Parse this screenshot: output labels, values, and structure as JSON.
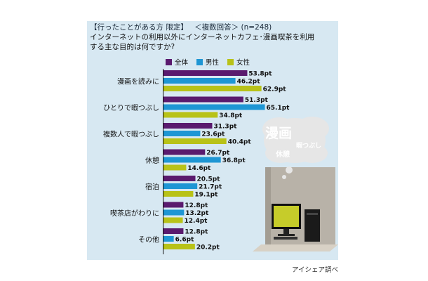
{
  "header": {
    "condition": "【行ったことがある方 限定】",
    "answer_type": "＜複数回答＞",
    "sample": "(n=248)",
    "question_line1": "インターネットの利用以外にインターネットカフェ･漫画喫茶を利用",
    "question_line2": "する主な目的は何ですか?"
  },
  "colors": {
    "all": "#5a1a6e",
    "male": "#1e96d4",
    "female": "#b8c218",
    "panel": "#d7e8f2"
  },
  "bubble": {
    "word1": "漫画",
    "word2": "暇つぶし",
    "word3": "休憩"
  },
  "credit": "アイシェア調べ",
  "chart_data": {
    "type": "bar",
    "orientation": "horizontal",
    "categories": [
      "漫画を読みに",
      "ひとりで暇つぶし",
      "複数人で暇つぶし",
      "休憩",
      "宿泊",
      "喫茶店がわりに",
      "その他"
    ],
    "series": [
      {
        "name": "全体",
        "color": "#5a1a6e",
        "values": [
          53.8,
          51.3,
          31.3,
          26.7,
          20.5,
          12.8,
          12.8
        ],
        "labels": [
          "53.8pt",
          "51.3pt",
          "31.3pt",
          "26.7pt",
          "20.5pt",
          "12.8pt",
          "12.8pt"
        ]
      },
      {
        "name": "男性",
        "color": "#1e96d4",
        "values": [
          46.2,
          65.1,
          23.6,
          36.8,
          21.7,
          13.2,
          6.6
        ],
        "labels": [
          "46.2pt",
          "65.1pt",
          "23.6pt",
          "36.8pt",
          "21.7pt",
          "13.2pt",
          "6.6pt"
        ]
      },
      {
        "name": "女性",
        "color": "#b8c218",
        "values": [
          62.9,
          34.8,
          40.4,
          14.6,
          19.1,
          12.4,
          20.2
        ],
        "labels": [
          "62.9pt",
          "34.8pt",
          "40.4pt",
          "14.6pt",
          "19.1pt",
          "12.4pt",
          "20.2pt"
        ]
      }
    ],
    "unit": "pt",
    "xlim": [
      0,
      70
    ],
    "grid": false,
    "legend_position": "top"
  }
}
